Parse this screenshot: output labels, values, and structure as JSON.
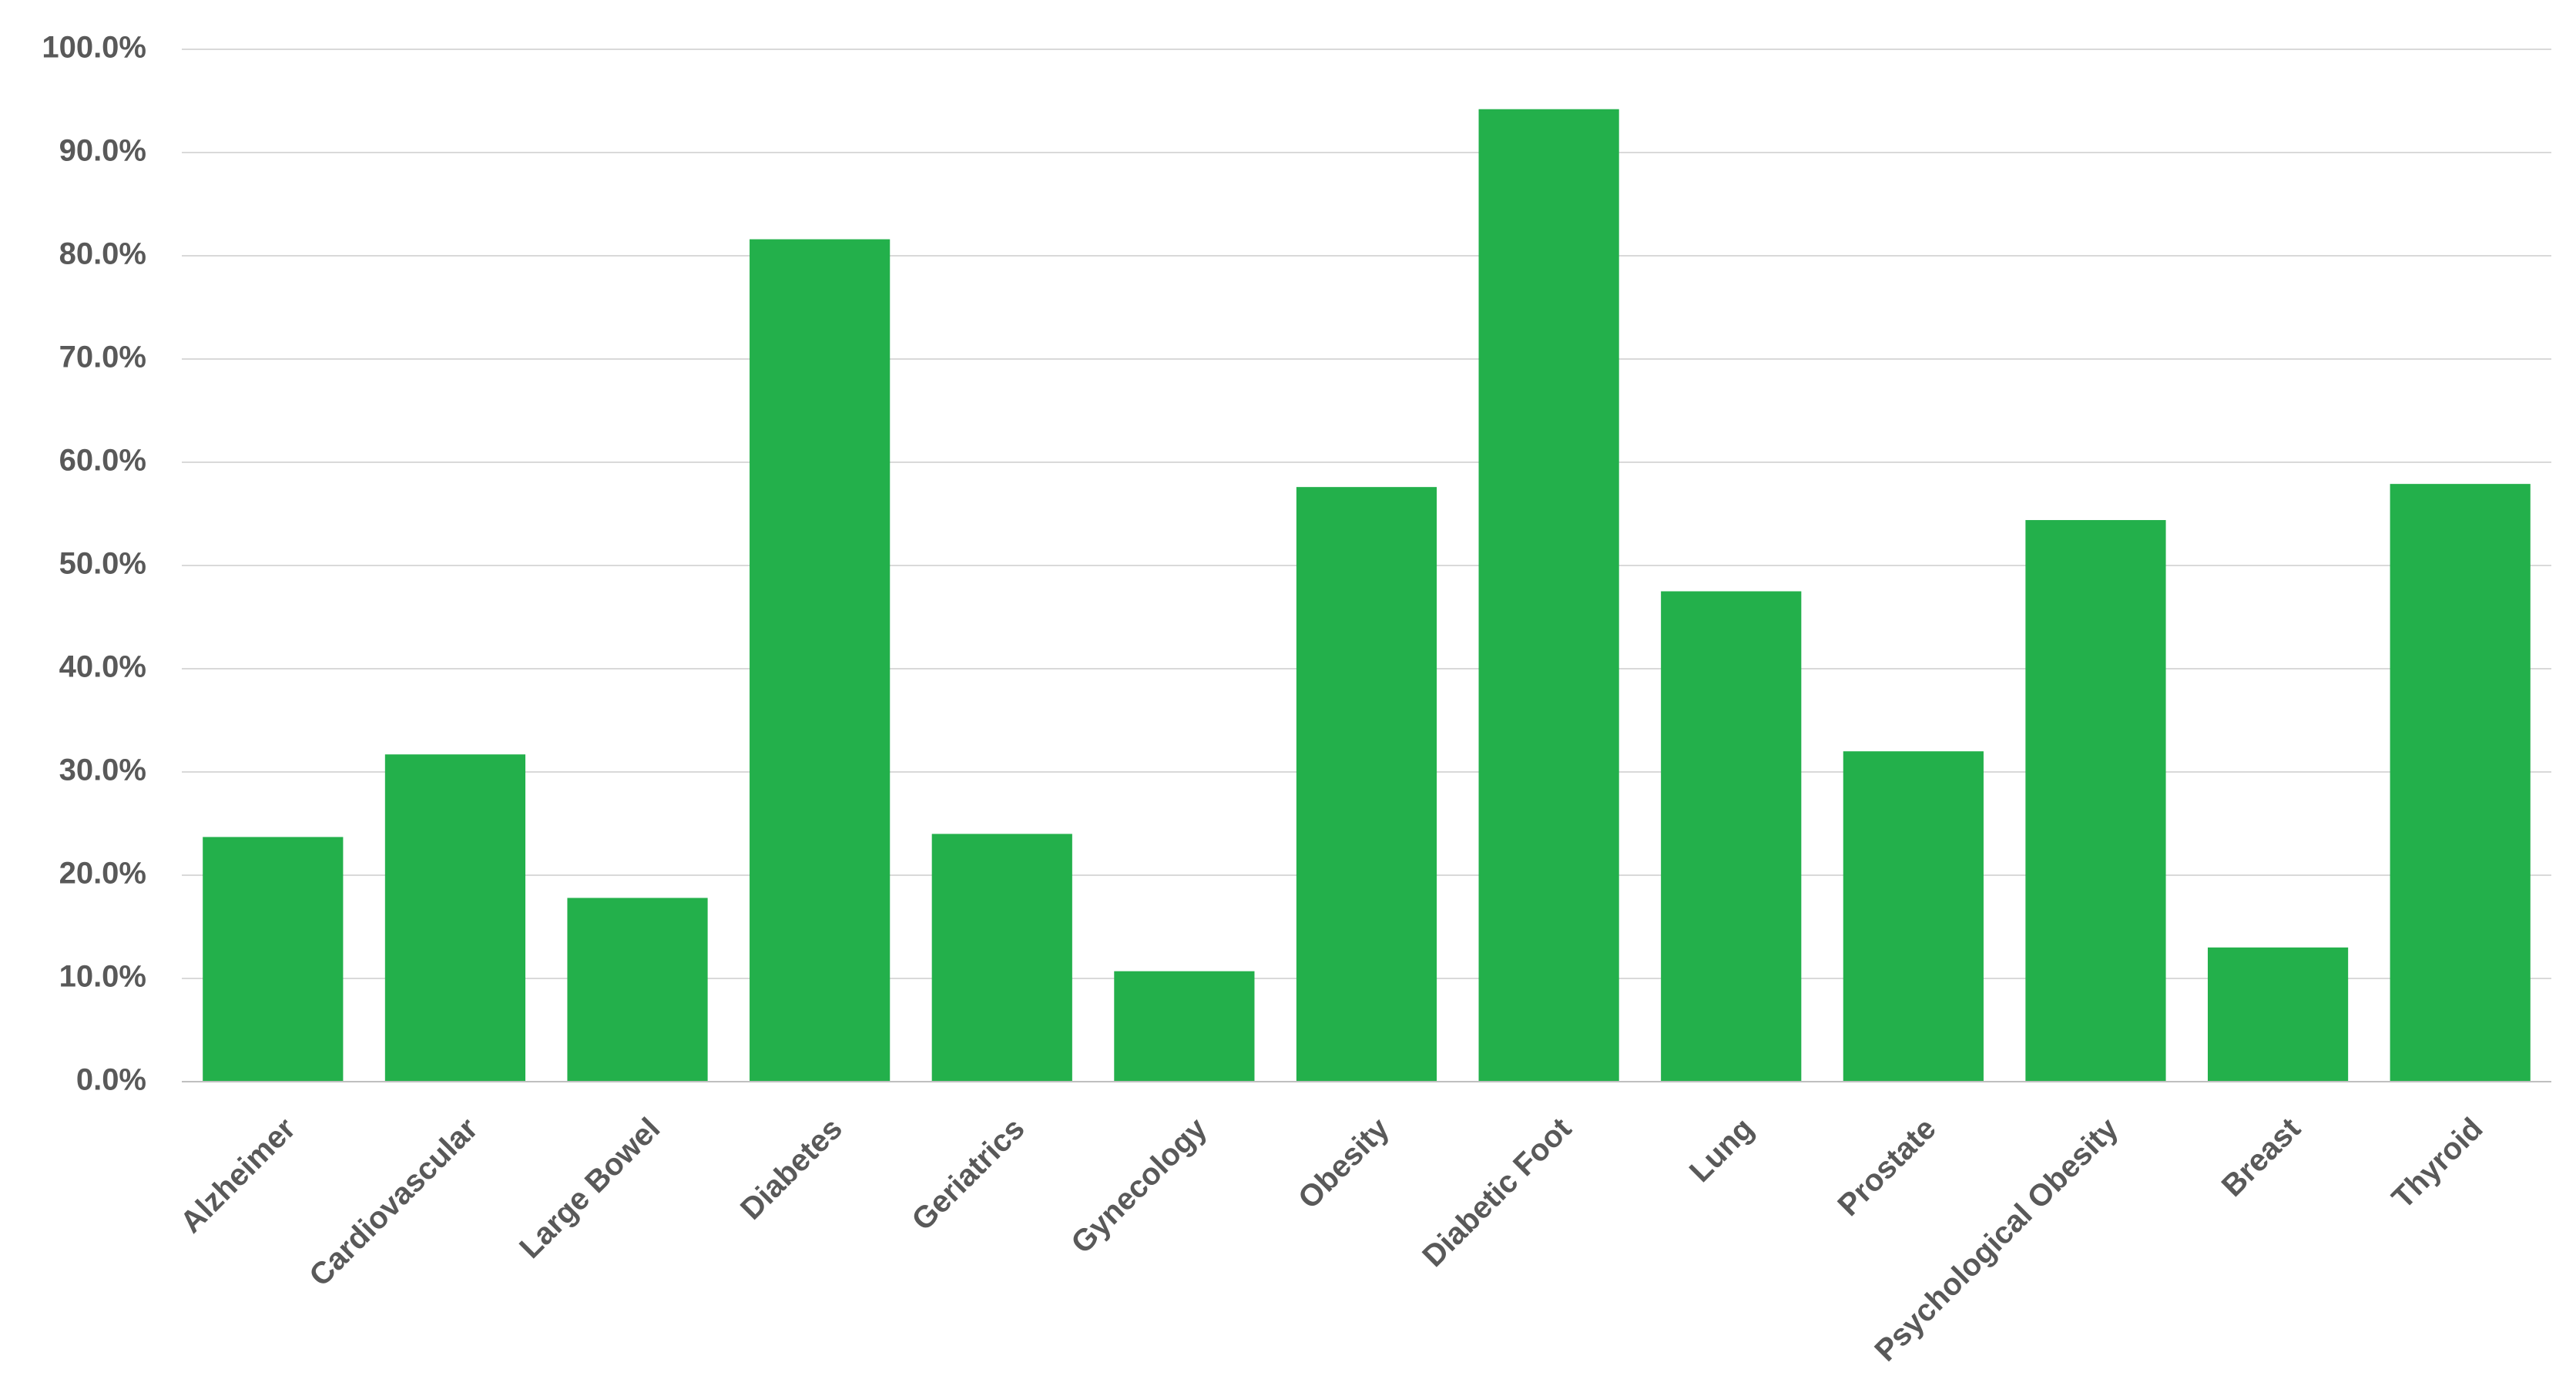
{
  "chart_data": {
    "type": "bar",
    "categories": [
      "Alzheimer",
      "Cardiovascular",
      "Large Bowel",
      "Diabetes",
      "Geriatrics",
      "Gynecology",
      "Obesity",
      "Diabetic Foot",
      "Lung",
      "Prostate",
      "Psychological Obesity",
      "Breast",
      "Thyroid"
    ],
    "values": [
      23.7,
      31.7,
      17.8,
      81.6,
      24.0,
      10.7,
      57.6,
      94.2,
      47.5,
      32.0,
      54.4,
      13.0,
      57.9
    ],
    "color": "#23b04b",
    "ylim": [
      0,
      100
    ],
    "yticks": [
      {
        "value": 0,
        "label": "0.0%"
      },
      {
        "value": 10,
        "label": "10.0%"
      },
      {
        "value": 20,
        "label": "20.0%"
      },
      {
        "value": 30,
        "label": "30.0%"
      },
      {
        "value": 40,
        "label": "40.0%"
      },
      {
        "value": 50,
        "label": "50.0%"
      },
      {
        "value": 60,
        "label": "60.0%"
      },
      {
        "value": 70,
        "label": "70.0%"
      },
      {
        "value": 80,
        "label": "80.0%"
      },
      {
        "value": 90,
        "label": "90.0%"
      },
      {
        "value": 100,
        "label": "100.0%"
      }
    ],
    "grid": true
  }
}
